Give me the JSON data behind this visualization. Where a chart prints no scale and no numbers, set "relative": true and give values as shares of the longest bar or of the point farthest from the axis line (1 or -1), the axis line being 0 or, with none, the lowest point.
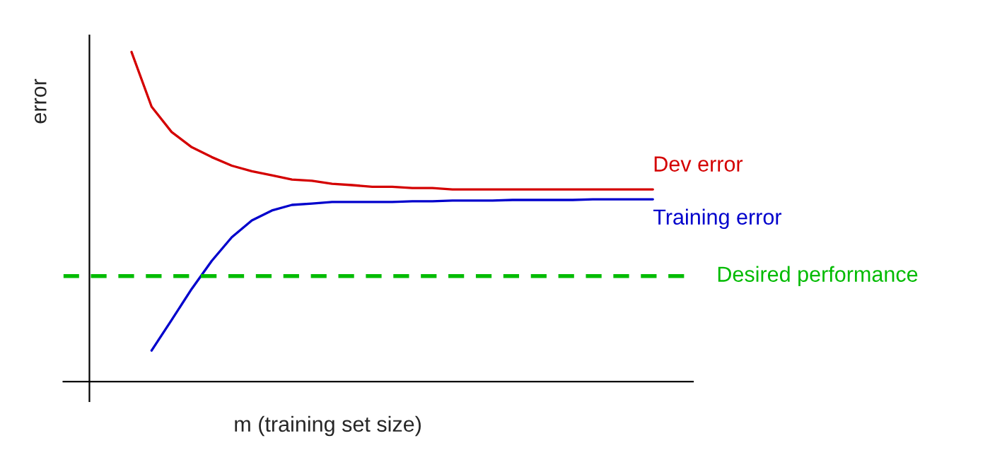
{
  "chart_data": {
    "type": "line",
    "relative": true,
    "xlabel": "m (training set size)",
    "ylabel": "error",
    "categories": [
      null,
      null,
      null,
      null,
      null,
      null,
      null,
      null,
      null,
      null,
      null,
      null,
      null,
      null,
      null,
      null,
      null,
      null,
      null,
      null,
      null,
      null,
      null,
      null,
      null,
      null,
      null
    ],
    "series": [
      {
        "name": "Dev error",
        "color": "#d40000",
        "values": [
          1.0,
          0.834,
          0.757,
          0.711,
          0.681,
          0.655,
          0.638,
          0.626,
          0.613,
          0.609,
          0.6,
          0.596,
          0.591,
          0.591,
          0.587,
          0.587,
          0.583,
          0.583,
          0.583,
          0.583,
          0.583,
          0.583,
          0.583,
          0.583,
          0.583,
          0.583,
          0.583
        ]
      },
      {
        "name": "Training error",
        "color": "#0000cc",
        "values": [
          null,
          0.094,
          0.187,
          0.281,
          0.366,
          0.438,
          0.489,
          0.519,
          0.536,
          0.54,
          0.545,
          0.545,
          0.545,
          0.545,
          0.547,
          0.547,
          0.549,
          0.549,
          0.549,
          0.551,
          0.551,
          0.551,
          0.551,
          0.553,
          0.553,
          0.553,
          0.553
        ]
      }
    ],
    "ref_lines": [
      {
        "axis": "y",
        "value": 0.32,
        "label": "Desired performance",
        "color": "#00bb00",
        "line_style": "dashed"
      }
    ]
  }
}
